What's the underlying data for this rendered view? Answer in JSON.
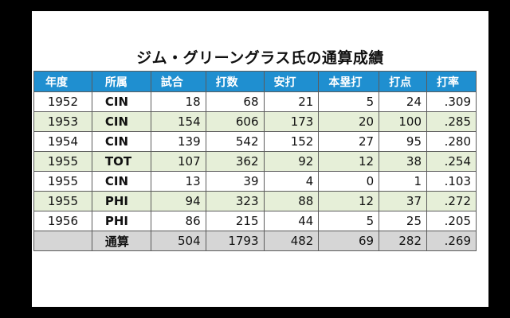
{
  "title": "ジム・グリーングラス氏の通算成績",
  "headers": [
    "年度",
    "所属",
    "試合",
    "打数",
    "安打",
    "本塁打",
    "打点",
    "打率"
  ],
  "rows": [
    {
      "year": "1952",
      "team": "CIN",
      "games": "18",
      "at_bats": "68",
      "hits": "21",
      "home_runs": "5",
      "rbi": "24",
      "avg": ".309"
    },
    {
      "year": "1953",
      "team": "CIN",
      "games": "154",
      "at_bats": "606",
      "hits": "173",
      "home_runs": "20",
      "rbi": "100",
      "avg": ".285"
    },
    {
      "year": "1954",
      "team": "CIN",
      "games": "139",
      "at_bats": "542",
      "hits": "152",
      "home_runs": "27",
      "rbi": "95",
      "avg": ".280"
    },
    {
      "year": "1955",
      "team": "TOT",
      "games": "107",
      "at_bats": "362",
      "hits": "92",
      "home_runs": "12",
      "rbi": "38",
      "avg": ".254"
    },
    {
      "year": "1955",
      "team": "CIN",
      "games": "13",
      "at_bats": "39",
      "hits": "4",
      "home_runs": "0",
      "rbi": "1",
      "avg": ".103"
    },
    {
      "year": "1955",
      "team": "PHI",
      "games": "94",
      "at_bats": "323",
      "hits": "88",
      "home_runs": "12",
      "rbi": "37",
      "avg": ".272"
    },
    {
      "year": "1956",
      "team": "PHI",
      "games": "86",
      "at_bats": "215",
      "hits": "44",
      "home_runs": "5",
      "rbi": "25",
      "avg": ".205"
    }
  ],
  "total": {
    "year": "",
    "label": "通算",
    "games": "504",
    "at_bats": "1793",
    "hits": "482",
    "home_runs": "69",
    "rbi": "282",
    "avg": ".269"
  },
  "colors": {
    "header_bg": "#1f8fd0",
    "alt_row_bg": "#e6efd8",
    "total_row_bg": "#d6d6d6",
    "border": "#5b5b5b"
  }
}
